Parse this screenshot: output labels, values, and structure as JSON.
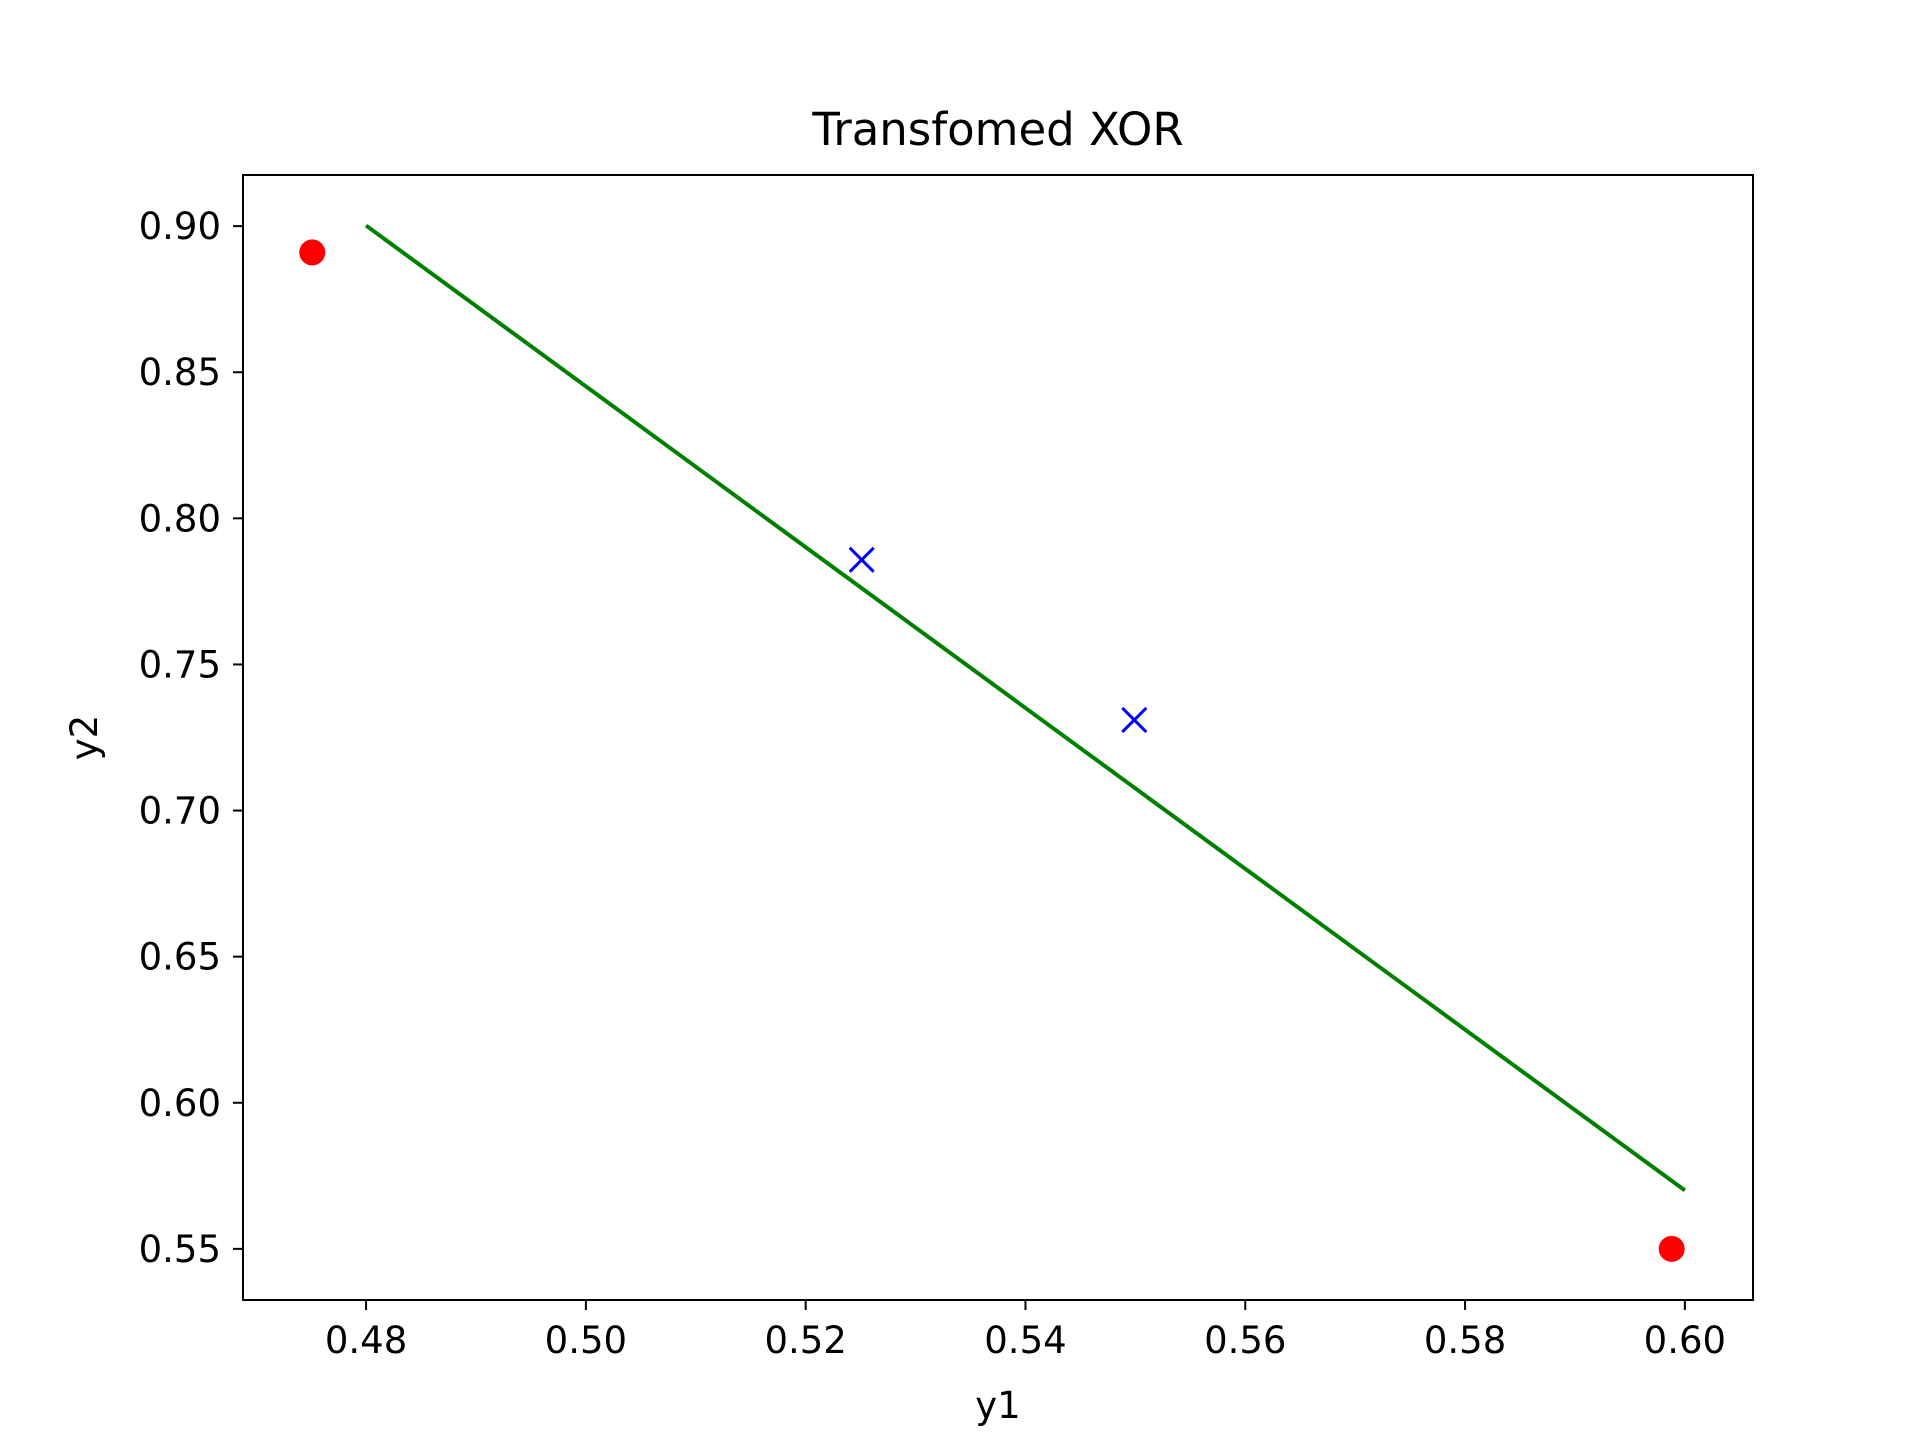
{
  "chart_data": {
    "type": "scatter",
    "title": "Transfomed XOR",
    "xlabel": "y1",
    "ylabel": "y2",
    "xlim": [
      0.4688,
      0.6062
    ],
    "ylim": [
      0.5325,
      0.9175
    ],
    "xticks": [
      0.48,
      0.5,
      0.52,
      0.54,
      0.56,
      0.58,
      0.6
    ],
    "xtick_labels": [
      "0.48",
      "0.50",
      "0.52",
      "0.54",
      "0.56",
      "0.58",
      "0.60"
    ],
    "yticks": [
      0.55,
      0.6,
      0.65,
      0.7,
      0.75,
      0.8,
      0.85,
      0.9
    ],
    "ytick_labels": [
      "0.55",
      "0.60",
      "0.65",
      "0.70",
      "0.75",
      "0.80",
      "0.85",
      "0.90"
    ],
    "grid": false,
    "series": [
      {
        "marker": "circle",
        "color": "#ff0000",
        "points": [
          [
            0.4751,
            0.891
          ],
          [
            0.5988,
            0.55
          ]
        ]
      },
      {
        "marker": "x",
        "color": "#0000ff",
        "points": [
          [
            0.5251,
            0.7858
          ],
          [
            0.5499,
            0.731
          ]
        ]
      }
    ],
    "lines": [
      {
        "color": "#008000",
        "points": [
          [
            0.48,
            0.9002
          ],
          [
            0.6,
            0.57
          ]
        ]
      }
    ]
  }
}
